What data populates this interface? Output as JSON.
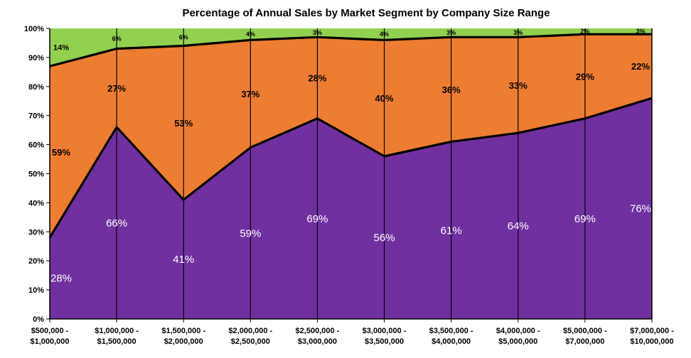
{
  "chart_data": {
    "type": "area",
    "stacked": true,
    "percent": true,
    "title": "Percentage of Annual Sales by Market Segment by Company Size Range",
    "categories": [
      "$500,000 - $1,000,000",
      "$1,000,000 - $1,500,000",
      "$1,500,000 - $2,000,000",
      "$2,000,000 - $2,500,000",
      "$2,500,000 - $3,000,000",
      "$3,000,000 - $3,500,000",
      "$3,500,000 - $4,000,000",
      "$4,000,000 - $5,000,000",
      "$5,000,000 - $7,000,000",
      "$7,000,000 - $10,000,000"
    ],
    "category_lines": [
      [
        "$500,000 -",
        "$1,000,000"
      ],
      [
        "$1,000,000 -",
        "$1,500,000"
      ],
      [
        "$1,500,000 -",
        "$2,000,000"
      ],
      [
        "$2,000,000 -",
        "$2,500,000"
      ],
      [
        "$2,500,000 -",
        "$3,000,000"
      ],
      [
        "$3,000,000 -",
        "$3,500,000"
      ],
      [
        "$3,500,000 -",
        "$4,000,000"
      ],
      [
        "$4,000,000 -",
        "$5,000,000"
      ],
      [
        "$5,000,000 -",
        "$7,000,000"
      ],
      [
        "$7,000,000 -",
        "$10,000,000"
      ]
    ],
    "series": [
      {
        "color": "#7030a0",
        "label_color": "#ffffff",
        "values": [
          28,
          66,
          41,
          59,
          69,
          56,
          61,
          64,
          69,
          76
        ],
        "labels": [
          "28%",
          "66%",
          "41%",
          "59%",
          "69%",
          "56%",
          "61%",
          "64%",
          "69%",
          "76%"
        ]
      },
      {
        "color": "#ed7d31",
        "label_color": "#000000",
        "values": [
          59,
          27,
          53,
          37,
          28,
          40,
          36,
          33,
          29,
          22
        ],
        "labels": [
          "59%",
          "27%",
          "53%",
          "37%",
          "28%",
          "40%",
          "36%",
          "33%",
          "29%",
          "22%"
        ]
      },
      {
        "color": "#92d050",
        "label_color": "#000000",
        "values": [
          14,
          6,
          6,
          4,
          3,
          4,
          3,
          3,
          2,
          3
        ],
        "labels": [
          "14%",
          "6%",
          "6%",
          "4%",
          "3%",
          "4%",
          "3%",
          "3%",
          "2%",
          "3%"
        ]
      }
    ],
    "y_ticks": [
      "0%",
      "10%",
      "20%",
      "30%",
      "40%",
      "50%",
      "60%",
      "70%",
      "80%",
      "90%",
      "100%"
    ],
    "ylim": [
      0,
      100
    ],
    "xlabel": "",
    "ylabel": "",
    "legend": "none",
    "grid": false
  }
}
